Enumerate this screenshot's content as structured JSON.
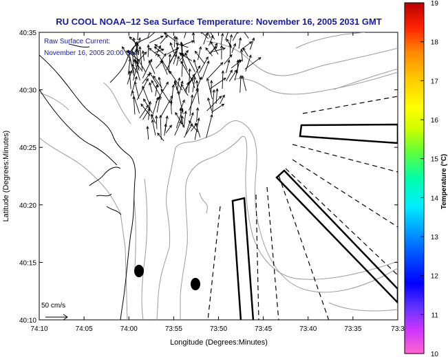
{
  "title": "RU COOL  NOAA–12  Sea Surface Temperature:  November 16, 2005 2031 GMT",
  "legend": {
    "line1": "Raw Surface Current:",
    "line2": "November 16, 2005 20:00 GMT"
  },
  "scale": {
    "label": "50 cm/s"
  },
  "axes": {
    "xlabel": "Longitude (Degrees:Minutes)",
    "ylabel": "Latitude (Degrees:Minutes)",
    "x_ticks": [
      "74:10",
      "74:05",
      "74:00",
      "73:55",
      "73:50",
      "73:45",
      "73:40",
      "73:35",
      "73:3"
    ],
    "y_ticks": [
      "40:35",
      "40:30",
      "40:25",
      "40:20",
      "40:15",
      "40:10"
    ]
  },
  "colorbar": {
    "label": "Temperature (°C)",
    "ticks": [
      "19",
      "18",
      "17",
      "16",
      "15",
      "14",
      "13",
      "12",
      "11",
      "10"
    ],
    "min": 10,
    "max": 19
  },
  "colors": {
    "title": "#1a1aa8",
    "contour": "#9a9a9a",
    "coast": "#000000"
  }
}
